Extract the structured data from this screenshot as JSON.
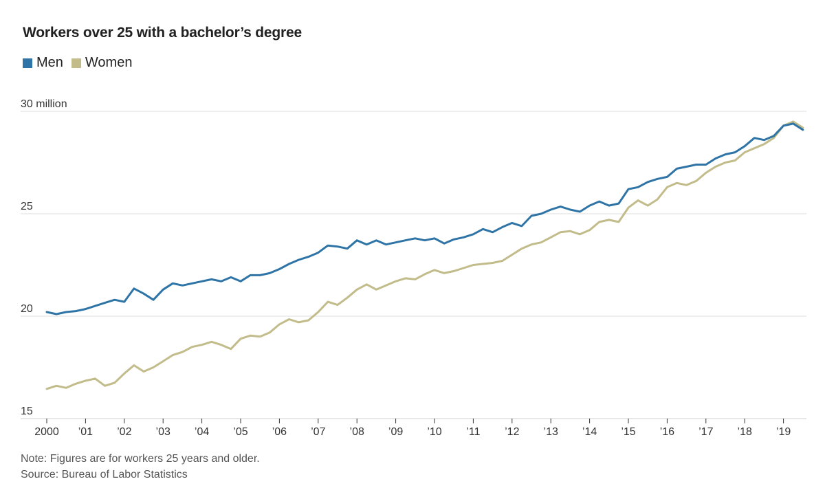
{
  "chart_data": {
    "type": "line",
    "title": "Workers over 25 with a bachelor’s degree",
    "xlabel": "",
    "ylabel": "",
    "x_ticks": [
      "2000",
      "’01",
      "’02",
      "’03",
      "’04",
      "’05",
      "’06",
      "’07",
      "’08",
      "’09",
      "’10",
      "’11",
      "’12",
      "’13",
      "’14",
      "’15",
      "’16",
      "’17",
      "’18",
      "’19"
    ],
    "y_ticks": [
      {
        "value": 30,
        "label": "30 million"
      },
      {
        "value": 25,
        "label": "25"
      },
      {
        "value": 20,
        "label": "20"
      },
      {
        "value": 15,
        "label": "15"
      }
    ],
    "xlim": [
      2000,
      2019.75
    ],
    "ylim": [
      15,
      30
    ],
    "legend_position": "top-left",
    "series": [
      {
        "name": "Men",
        "color": "#2e74a6",
        "points": [
          [
            2000.0,
            20.2
          ],
          [
            2000.25,
            20.1
          ],
          [
            2000.5,
            20.2
          ],
          [
            2000.75,
            20.25
          ],
          [
            2001.0,
            20.35
          ],
          [
            2001.25,
            20.5
          ],
          [
            2001.5,
            20.65
          ],
          [
            2001.75,
            20.8
          ],
          [
            2002.0,
            20.7
          ],
          [
            2002.25,
            21.35
          ],
          [
            2002.5,
            21.1
          ],
          [
            2002.75,
            20.8
          ],
          [
            2003.0,
            21.3
          ],
          [
            2003.25,
            21.6
          ],
          [
            2003.5,
            21.5
          ],
          [
            2003.75,
            21.6
          ],
          [
            2004.0,
            21.7
          ],
          [
            2004.25,
            21.8
          ],
          [
            2004.5,
            21.7
          ],
          [
            2004.75,
            21.9
          ],
          [
            2005.0,
            21.7
          ],
          [
            2005.25,
            22.0
          ],
          [
            2005.5,
            22.0
          ],
          [
            2005.75,
            22.1
          ],
          [
            2006.0,
            22.3
          ],
          [
            2006.25,
            22.55
          ],
          [
            2006.5,
            22.75
          ],
          [
            2006.75,
            22.9
          ],
          [
            2007.0,
            23.1
          ],
          [
            2007.25,
            23.45
          ],
          [
            2007.5,
            23.4
          ],
          [
            2007.75,
            23.3
          ],
          [
            2008.0,
            23.7
          ],
          [
            2008.25,
            23.5
          ],
          [
            2008.5,
            23.7
          ],
          [
            2008.75,
            23.5
          ],
          [
            2009.0,
            23.6
          ],
          [
            2009.25,
            23.7
          ],
          [
            2009.5,
            23.8
          ],
          [
            2009.75,
            23.7
          ],
          [
            2010.0,
            23.8
          ],
          [
            2010.25,
            23.55
          ],
          [
            2010.5,
            23.75
          ],
          [
            2010.75,
            23.85
          ],
          [
            2011.0,
            24.0
          ],
          [
            2011.25,
            24.25
          ],
          [
            2011.5,
            24.1
          ],
          [
            2011.75,
            24.35
          ],
          [
            2012.0,
            24.55
          ],
          [
            2012.25,
            24.4
          ],
          [
            2012.5,
            24.9
          ],
          [
            2012.75,
            25.0
          ],
          [
            2013.0,
            25.2
          ],
          [
            2013.25,
            25.35
          ],
          [
            2013.5,
            25.2
          ],
          [
            2013.75,
            25.1
          ],
          [
            2014.0,
            25.4
          ],
          [
            2014.25,
            25.6
          ],
          [
            2014.5,
            25.4
          ],
          [
            2014.75,
            25.5
          ],
          [
            2015.0,
            26.2
          ],
          [
            2015.25,
            26.3
          ],
          [
            2015.5,
            26.55
          ],
          [
            2015.75,
            26.7
          ],
          [
            2016.0,
            26.8
          ],
          [
            2016.25,
            27.2
          ],
          [
            2016.5,
            27.3
          ],
          [
            2016.75,
            27.4
          ],
          [
            2017.0,
            27.4
          ],
          [
            2017.25,
            27.7
          ],
          [
            2017.5,
            27.9
          ],
          [
            2017.75,
            28.0
          ],
          [
            2018.0,
            28.3
          ],
          [
            2018.25,
            28.7
          ],
          [
            2018.5,
            28.6
          ],
          [
            2018.75,
            28.8
          ],
          [
            2019.0,
            29.3
          ],
          [
            2019.25,
            29.4
          ],
          [
            2019.5,
            29.1
          ]
        ]
      },
      {
        "name": "Women",
        "color": "#c2bb8a",
        "points": [
          [
            2000.0,
            16.45
          ],
          [
            2000.25,
            16.6
          ],
          [
            2000.5,
            16.5
          ],
          [
            2000.75,
            16.7
          ],
          [
            2001.0,
            16.85
          ],
          [
            2001.25,
            16.95
          ],
          [
            2001.5,
            16.6
          ],
          [
            2001.75,
            16.75
          ],
          [
            2002.0,
            17.2
          ],
          [
            2002.25,
            17.6
          ],
          [
            2002.5,
            17.3
          ],
          [
            2002.75,
            17.5
          ],
          [
            2003.0,
            17.8
          ],
          [
            2003.25,
            18.1
          ],
          [
            2003.5,
            18.25
          ],
          [
            2003.75,
            18.5
          ],
          [
            2004.0,
            18.6
          ],
          [
            2004.25,
            18.75
          ],
          [
            2004.5,
            18.6
          ],
          [
            2004.75,
            18.4
          ],
          [
            2005.0,
            18.9
          ],
          [
            2005.25,
            19.05
          ],
          [
            2005.5,
            19.0
          ],
          [
            2005.75,
            19.2
          ],
          [
            2006.0,
            19.6
          ],
          [
            2006.25,
            19.85
          ],
          [
            2006.5,
            19.7
          ],
          [
            2006.75,
            19.8
          ],
          [
            2007.0,
            20.2
          ],
          [
            2007.25,
            20.7
          ],
          [
            2007.5,
            20.55
          ],
          [
            2007.75,
            20.9
          ],
          [
            2008.0,
            21.3
          ],
          [
            2008.25,
            21.55
          ],
          [
            2008.5,
            21.3
          ],
          [
            2008.75,
            21.5
          ],
          [
            2009.0,
            21.7
          ],
          [
            2009.25,
            21.85
          ],
          [
            2009.5,
            21.8
          ],
          [
            2009.75,
            22.05
          ],
          [
            2010.0,
            22.25
          ],
          [
            2010.25,
            22.1
          ],
          [
            2010.5,
            22.2
          ],
          [
            2010.75,
            22.35
          ],
          [
            2011.0,
            22.5
          ],
          [
            2011.25,
            22.55
          ],
          [
            2011.5,
            22.6
          ],
          [
            2011.75,
            22.7
          ],
          [
            2012.0,
            23.0
          ],
          [
            2012.25,
            23.3
          ],
          [
            2012.5,
            23.5
          ],
          [
            2012.75,
            23.6
          ],
          [
            2013.0,
            23.85
          ],
          [
            2013.25,
            24.1
          ],
          [
            2013.5,
            24.15
          ],
          [
            2013.75,
            24.0
          ],
          [
            2014.0,
            24.2
          ],
          [
            2014.25,
            24.6
          ],
          [
            2014.5,
            24.7
          ],
          [
            2014.75,
            24.6
          ],
          [
            2015.0,
            25.3
          ],
          [
            2015.25,
            25.65
          ],
          [
            2015.5,
            25.4
          ],
          [
            2015.75,
            25.7
          ],
          [
            2016.0,
            26.3
          ],
          [
            2016.25,
            26.5
          ],
          [
            2016.5,
            26.4
          ],
          [
            2016.75,
            26.6
          ],
          [
            2017.0,
            27.0
          ],
          [
            2017.25,
            27.3
          ],
          [
            2017.5,
            27.5
          ],
          [
            2017.75,
            27.6
          ],
          [
            2018.0,
            28.0
          ],
          [
            2018.25,
            28.2
          ],
          [
            2018.5,
            28.4
          ],
          [
            2018.75,
            28.7
          ],
          [
            2019.0,
            29.3
          ],
          [
            2019.25,
            29.5
          ],
          [
            2019.5,
            29.2
          ]
        ]
      }
    ]
  },
  "notes": {
    "note": "Note: Figures are for workers 25 years and older.",
    "source": "Source: Bureau of Labor Statistics"
  }
}
